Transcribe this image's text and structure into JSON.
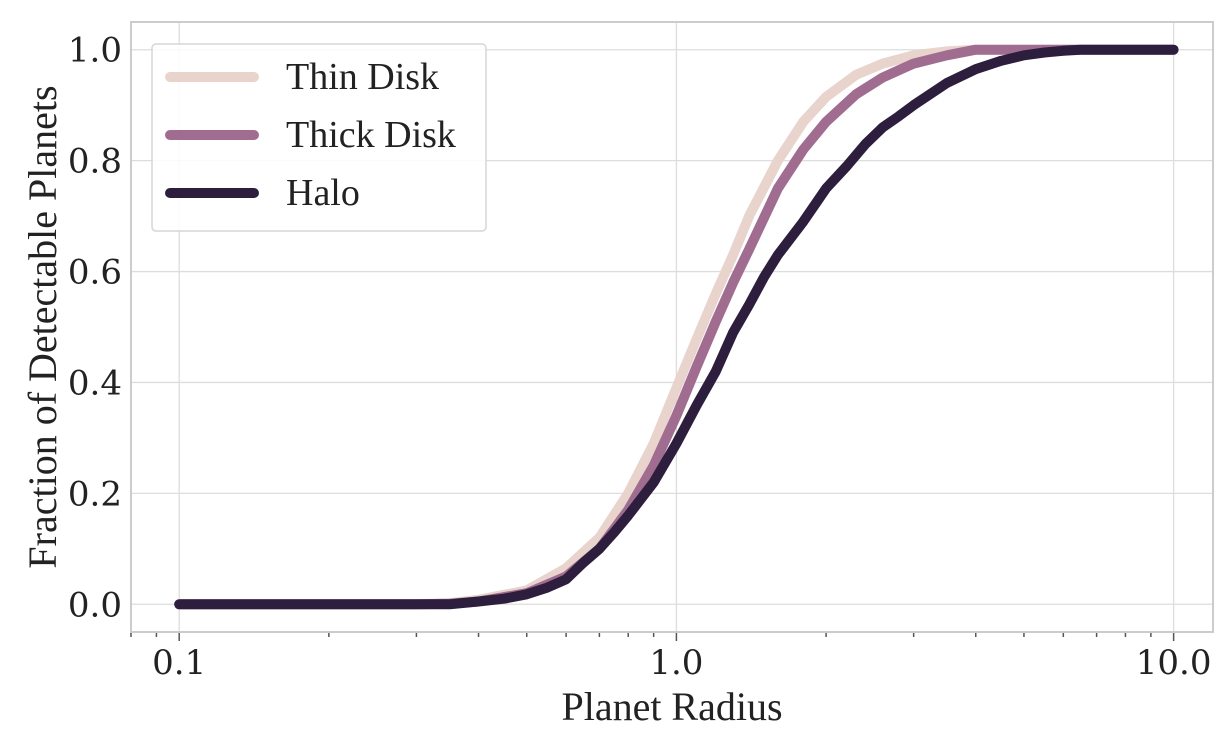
{
  "chart_data": {
    "type": "line",
    "title": "",
    "xlabel": "Planet Radius",
    "ylabel": "Fraction of Detectable Planets",
    "xscale": "log",
    "xlim": [
      0.08,
      12.0
    ],
    "ylim": [
      -0.05,
      1.05
    ],
    "xticks": [
      0.1,
      1.0,
      10.0
    ],
    "xtick_labels": [
      "0.1",
      "1.0",
      "10.0"
    ],
    "yticks": [
      0.0,
      0.2,
      0.4,
      0.6,
      0.8,
      1.0
    ],
    "ytick_labels": [
      "0.0",
      "0.2",
      "0.4",
      "0.6",
      "0.8",
      "1.0"
    ],
    "grid": true,
    "legend_position": "upper-left",
    "series": [
      {
        "name": "Thin Disk",
        "color": "#e8d3cd",
        "x": [
          0.1,
          0.3,
          0.35,
          0.4,
          0.5,
          0.6,
          0.7,
          0.8,
          0.9,
          1.0,
          1.1,
          1.2,
          1.3,
          1.4,
          1.6,
          1.8,
          2.0,
          2.3,
          2.6,
          3.0,
          3.5,
          4.0,
          5.0,
          6.0,
          10.0
        ],
        "y": [
          0.0,
          0.0,
          0.002,
          0.008,
          0.025,
          0.065,
          0.12,
          0.2,
          0.29,
          0.39,
          0.48,
          0.56,
          0.63,
          0.7,
          0.8,
          0.87,
          0.915,
          0.955,
          0.975,
          0.99,
          0.997,
          1.0,
          1.0,
          1.0,
          1.0
        ]
      },
      {
        "name": "Thick Disk",
        "color": "#a06c90",
        "x": [
          0.1,
          0.3,
          0.35,
          0.4,
          0.5,
          0.6,
          0.7,
          0.8,
          0.9,
          1.0,
          1.1,
          1.2,
          1.3,
          1.4,
          1.6,
          1.8,
          2.0,
          2.3,
          2.6,
          3.0,
          3.5,
          4.0,
          5.0,
          6.0,
          10.0
        ],
        "y": [
          0.0,
          0.0,
          0.001,
          0.005,
          0.02,
          0.05,
          0.1,
          0.17,
          0.25,
          0.34,
          0.43,
          0.51,
          0.58,
          0.64,
          0.75,
          0.82,
          0.87,
          0.92,
          0.95,
          0.975,
          0.99,
          1.0,
          1.0,
          1.0,
          1.0
        ]
      },
      {
        "name": "Halo",
        "color": "#2d1e3e",
        "x": [
          0.1,
          0.35,
          0.4,
          0.45,
          0.5,
          0.55,
          0.6,
          0.65,
          0.7,
          0.75,
          0.8,
          0.9,
          1.0,
          1.1,
          1.2,
          1.3,
          1.4,
          1.5,
          1.6,
          1.8,
          2.0,
          2.2,
          2.4,
          2.6,
          2.8,
          3.0,
          3.5,
          4.0,
          4.5,
          5.0,
          5.5,
          6.0,
          6.5,
          8.0,
          10.0
        ],
        "y": [
          0.0,
          0.0,
          0.005,
          0.01,
          0.018,
          0.03,
          0.045,
          0.075,
          0.1,
          0.13,
          0.16,
          0.22,
          0.29,
          0.36,
          0.42,
          0.49,
          0.54,
          0.59,
          0.63,
          0.69,
          0.75,
          0.79,
          0.83,
          0.86,
          0.88,
          0.9,
          0.94,
          0.965,
          0.98,
          0.99,
          0.995,
          0.998,
          1.0,
          1.0,
          1.0
        ]
      }
    ]
  }
}
